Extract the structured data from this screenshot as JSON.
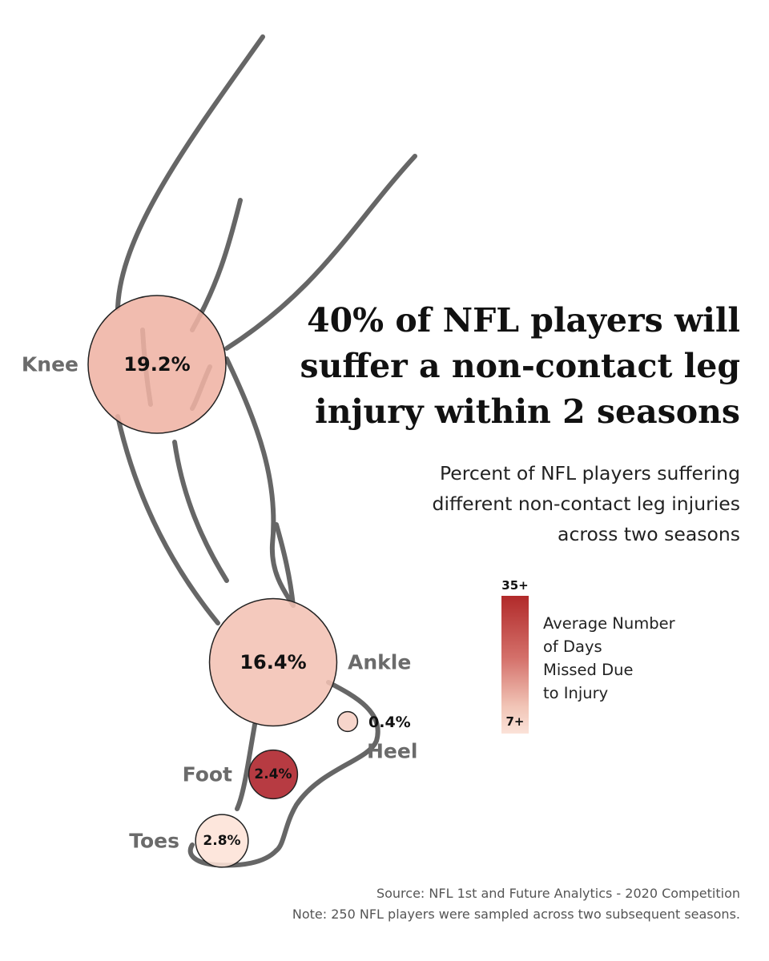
{
  "headline": [
    "40% of NFL players will",
    "suffer a non-contact leg",
    "injury within 2 seasons"
  ],
  "subtitle": [
    "Percent of NFL players suffering",
    "different non-contact leg injuries",
    "across two seasons"
  ],
  "legend": {
    "max_label": "35+",
    "min_label": "7+",
    "title": [
      "Average Number",
      "of Days",
      "Missed Due",
      "to Injury"
    ],
    "color_high": "#b12a2a",
    "color_low": "#fbe2d8"
  },
  "chart_data": {
    "type": "bubble",
    "title": "40% of NFL players will suffer a non-contact leg injury within 2 seasons",
    "subtitle": "Percent of NFL players suffering different non-contact leg injuries across two seasons",
    "size_encoding": "Percent of NFL players",
    "color_encoding": "Average Number of Days Missed Due to Injury",
    "color_range": [
      "7+",
      "35+"
    ],
    "points": [
      {
        "name": "Knee",
        "label": "Knee",
        "percent": 19.2,
        "display": "19.2%",
        "color": "#efb3a4"
      },
      {
        "name": "Ankle",
        "label": "Ankle",
        "percent": 16.4,
        "display": "16.4%",
        "color": "#f3c1b4"
      },
      {
        "name": "Heel",
        "label": "Heel",
        "percent": 0.4,
        "display": "0.4%",
        "color": "#f6cfc4"
      },
      {
        "name": "Foot",
        "label": "Foot",
        "percent": 2.4,
        "display": "2.4%",
        "color": "#ad2028"
      },
      {
        "name": "Toes",
        "label": "Toes",
        "percent": 2.8,
        "display": "2.8%",
        "color": "#fde2d7"
      }
    ]
  },
  "source": {
    "line1": "Source: NFL 1st and Future Analytics - 2020 Competition",
    "line2": "Note: 250 NFL players were sampled across two subsequent seasons."
  }
}
